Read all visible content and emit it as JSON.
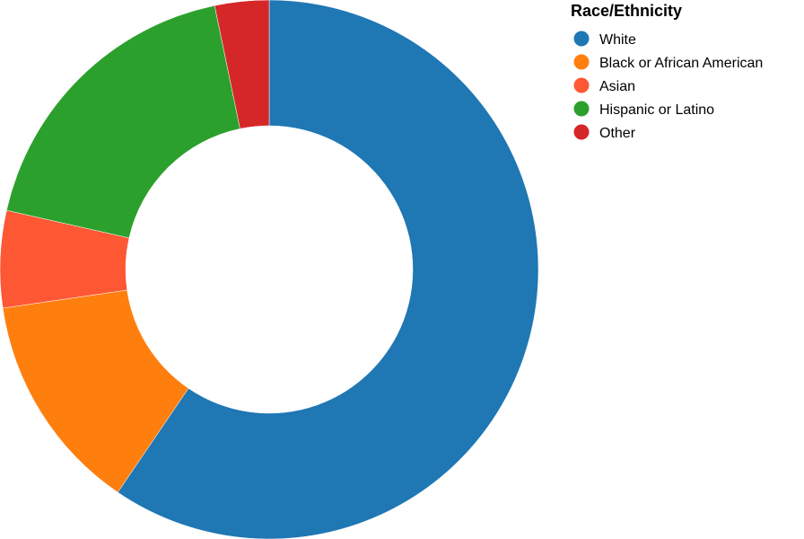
{
  "chart_data": {
    "type": "pie",
    "donut": true,
    "legend_title": "Race/Ethnicity",
    "legend_position": "top-right",
    "categories": [
      "White",
      "Black or African American",
      "Asian",
      "Hispanic or Latino",
      "Other"
    ],
    "values": [
      60.4,
      13.4,
      5.9,
      18.5,
      3.3
    ],
    "colors": [
      "#1f77b4",
      "#ff7f0e",
      "#fe5733",
      "#2ca02c",
      "#d62728"
    ],
    "title": "",
    "xlabel": "",
    "ylabel": ""
  }
}
